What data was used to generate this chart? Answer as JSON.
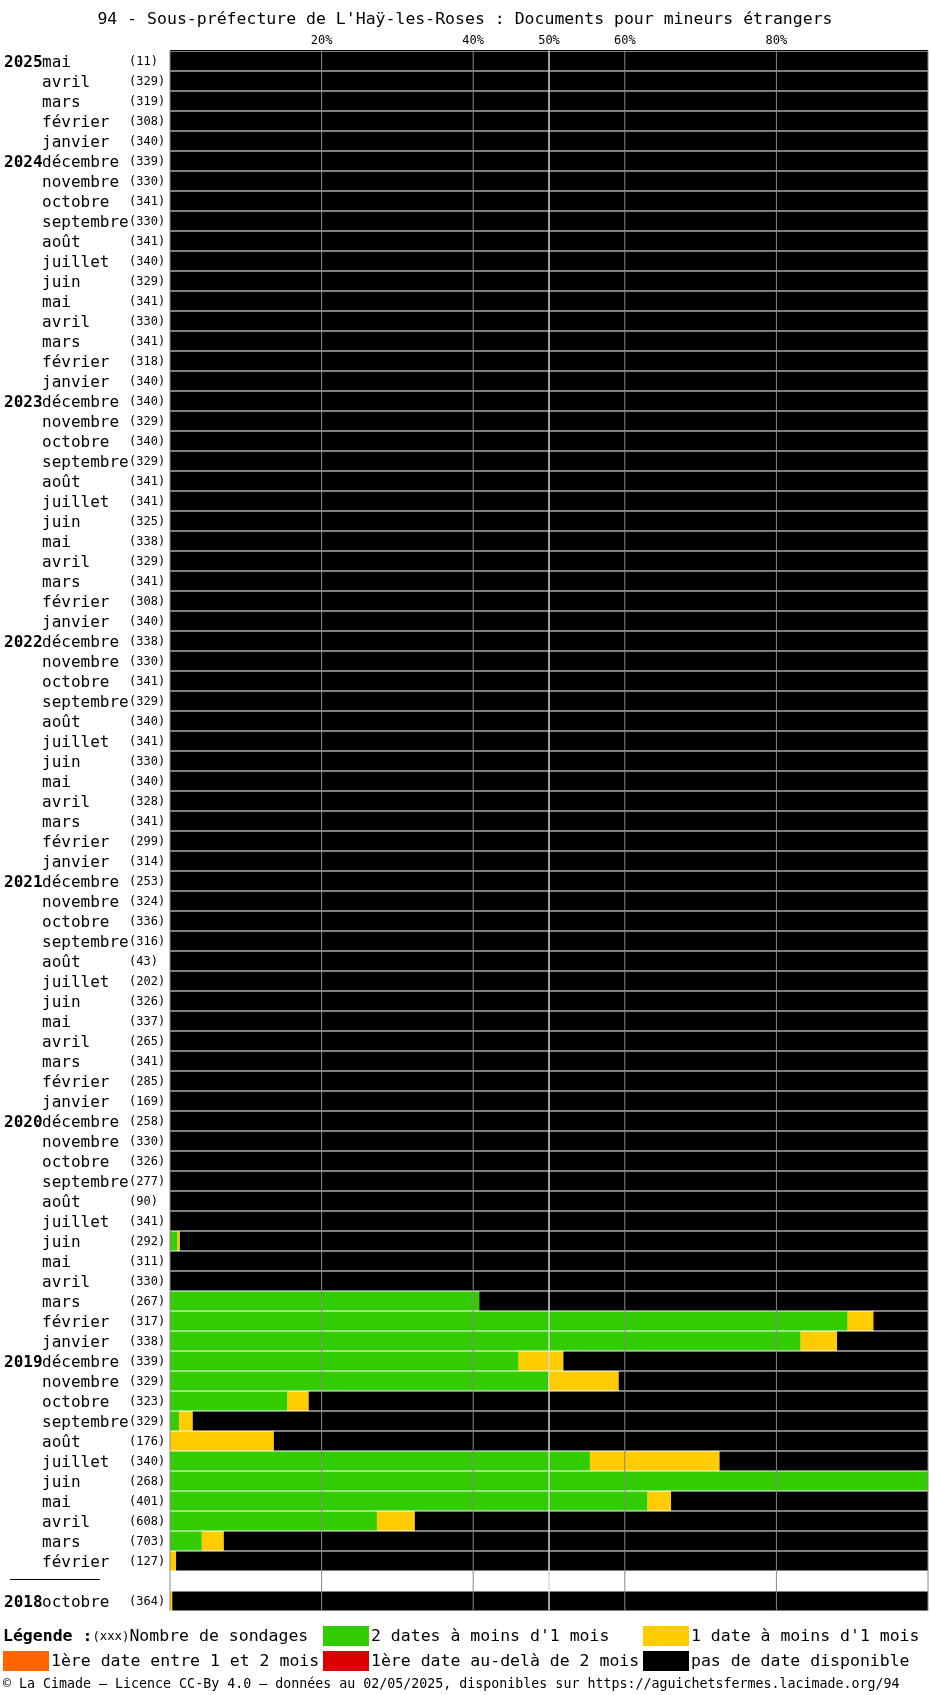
{
  "chart_data": {
    "type": "bar",
    "orientation": "horizontal",
    "stacked": true,
    "title": "94 - Sous-préfecture de L'Haÿ-les-Roses : Documents pour mineurs étrangers",
    "legend_title": "Légende :",
    "annotations": [
      "(xxx)",
      "Nombre de sondages",
      "© La Cimade — Licence CC-By 4.0 — données au 02/05/2025, disponibles sur https://aguichetsfermes.lacimade.org/94"
    ],
    "categories": [
      "2025mai (11)",
      "avril (329)",
      "mars (319)",
      "février (308)",
      "janvier (340)",
      "2024décembre (339)",
      "novembre (330)",
      "octobre (341)",
      "septembre(330)",
      "août (341)",
      "juillet (340)",
      "juin (329)",
      "mai (341)",
      "avril (330)",
      "mars (341)",
      "février (318)",
      "janvier (340)",
      "2023décembre (340)",
      "novembre (329)",
      "octobre (340)",
      "septembre(329)",
      "août (341)",
      "juillet (341)",
      "juin (325)",
      "mai (338)",
      "avril (329)",
      "mars (341)",
      "février (308)",
      "janvier (340)",
      "2022décembre (338)",
      "novembre (330)",
      "octobre (341)",
      "septembre(329)",
      "août (340)",
      "juillet (341)",
      "juin (330)",
      "mai (340)",
      "avril (328)",
      "mars (341)",
      "février (299)",
      "janvier (314)",
      "2021décembre (253)",
      "novembre (324)",
      "octobre (336)",
      "septembre(316)",
      "août (43)",
      "juillet (202)",
      "juin (326)",
      "mai (337)",
      "avril (265)",
      "mars (341)",
      "février (285)",
      "janvier (169)",
      "2020décembre (258)",
      "novembre (330)",
      "octobre (326)",
      "septembre(277)",
      "août (90)",
      "juillet (341)",
      "juin (292)",
      "mai (311)",
      "avril (330)",
      "mars (267)",
      "février (317)",
      "janvier (338)",
      "2019décembre (339)",
      "novembre (329)",
      "octobre (323)",
      "septembre(329)",
      "août (176)",
      "juillet (340)",
      "juin (268)",
      "mai (401)",
      "avril (608)",
      "mars (703)",
      "février (127)",
      null,
      "2018octobre (364)"
    ],
    "series": [
      {
        "name": "2 dates à moins d'1 mois",
        "color": "#33cc00",
        "values": [
          0,
          0,
          0,
          0,
          0,
          0,
          0,
          0,
          0,
          0,
          0,
          0,
          0,
          0,
          0,
          0,
          0,
          0,
          0,
          0,
          0,
          0,
          0,
          0,
          0,
          0,
          0,
          0,
          0,
          0,
          0,
          0,
          0,
          0,
          0,
          0,
          0,
          0,
          0,
          0,
          0,
          0,
          0,
          0,
          0,
          0,
          0,
          0,
          0,
          0,
          0,
          0,
          0,
          0,
          0,
          0,
          0,
          0,
          0,
          1,
          0,
          0,
          40.8,
          89.4,
          83.2,
          46,
          49.9,
          15.5,
          1.2,
          0,
          55.4,
          100,
          63,
          27.3,
          4.2,
          0,
          null,
          0
        ]
      },
      {
        "name": "1 date à moins d'1 mois",
        "color": "#ffcc00",
        "values": [
          0,
          0,
          0,
          0,
          0,
          0,
          0,
          0,
          0,
          0,
          0,
          0,
          0,
          0,
          0,
          0,
          0,
          0,
          0,
          0,
          0,
          0,
          0,
          0,
          0,
          0,
          0,
          0,
          0,
          0,
          0,
          0,
          0,
          0,
          0,
          0,
          0,
          0,
          0,
          0,
          0,
          0,
          0,
          0,
          0,
          0,
          0,
          0,
          0,
          0,
          0,
          0,
          0,
          0,
          0,
          0,
          0,
          0,
          0,
          0.3,
          0,
          0,
          0,
          3.4,
          4.8,
          5.9,
          9.3,
          2.8,
          1.8,
          13.7,
          17.1,
          0,
          3.1,
          5,
          2.9,
          0.8,
          null,
          0.3
        ]
      },
      {
        "name": "1ère date entre 1 et 2 mois",
        "color": "#ff6600",
        "values": [
          0,
          0,
          0,
          0,
          0,
          0,
          0,
          0,
          0,
          0,
          0,
          0,
          0,
          0,
          0,
          0,
          0,
          0,
          0,
          0,
          0,
          0,
          0,
          0,
          0,
          0,
          0,
          0,
          0,
          0,
          0,
          0,
          0,
          0,
          0,
          0,
          0,
          0,
          0,
          0,
          0,
          0,
          0,
          0,
          0,
          0,
          0,
          0,
          0,
          0,
          0,
          0,
          0,
          0,
          0,
          0,
          0,
          0,
          0,
          0,
          0,
          0,
          0,
          0,
          0,
          0,
          0,
          0,
          0,
          0,
          0,
          0,
          0,
          0,
          0,
          0,
          null,
          0
        ]
      },
      {
        "name": "1ère date au-delà de 2 mois",
        "color": "#dd0000",
        "values": [
          0,
          0,
          0,
          0,
          0,
          0,
          0,
          0,
          0,
          0,
          0,
          0,
          0,
          0,
          0,
          0,
          0,
          0,
          0,
          0,
          0,
          0,
          0,
          0,
          0,
          0,
          0,
          0,
          0,
          0,
          0,
          0,
          0,
          0,
          0,
          0,
          0,
          0,
          0,
          0,
          0,
          0,
          0,
          0,
          0,
          0,
          0,
          0,
          0,
          0,
          0,
          0,
          0,
          0,
          0,
          0,
          0,
          0,
          0,
          0,
          0,
          0,
          0,
          0,
          0,
          0,
          0,
          0,
          0,
          0,
          0,
          0,
          0,
          0,
          0,
          0,
          null,
          0
        ]
      },
      {
        "name": "pas de date disponible",
        "color": "#000000",
        "values": [
          100,
          100,
          100,
          100,
          100,
          100,
          100,
          100,
          100,
          100,
          100,
          100,
          100,
          100,
          100,
          100,
          100,
          100,
          100,
          100,
          100,
          100,
          100,
          100,
          100,
          100,
          100,
          100,
          100,
          100,
          100,
          100,
          100,
          100,
          100,
          100,
          100,
          100,
          100,
          100,
          100,
          100,
          100,
          100,
          100,
          100,
          100,
          100,
          100,
          100,
          100,
          100,
          100,
          100,
          100,
          100,
          100,
          100,
          100,
          98.7,
          100,
          100,
          59.2,
          7.2,
          12,
          48.1,
          40.8,
          81.7,
          97,
          86.3,
          27.5,
          0,
          33.9,
          67.7,
          92.9,
          99.2,
          null,
          99.7
        ]
      }
    ],
    "xlim": [
      0,
      100
    ],
    "xticks": [
      {
        "value": 20,
        "label": "20%"
      },
      {
        "value": 40,
        "label": "40%"
      },
      {
        "value": 50,
        "label": "50%"
      },
      {
        "value": 60,
        "label": "60%"
      },
      {
        "value": 80,
        "label": "80%"
      }
    ],
    "ref_lines": [
      {
        "axis": "x",
        "value": 50,
        "color": "#ffffff"
      }
    ],
    "grid": "x",
    "legend": "bottom"
  }
}
